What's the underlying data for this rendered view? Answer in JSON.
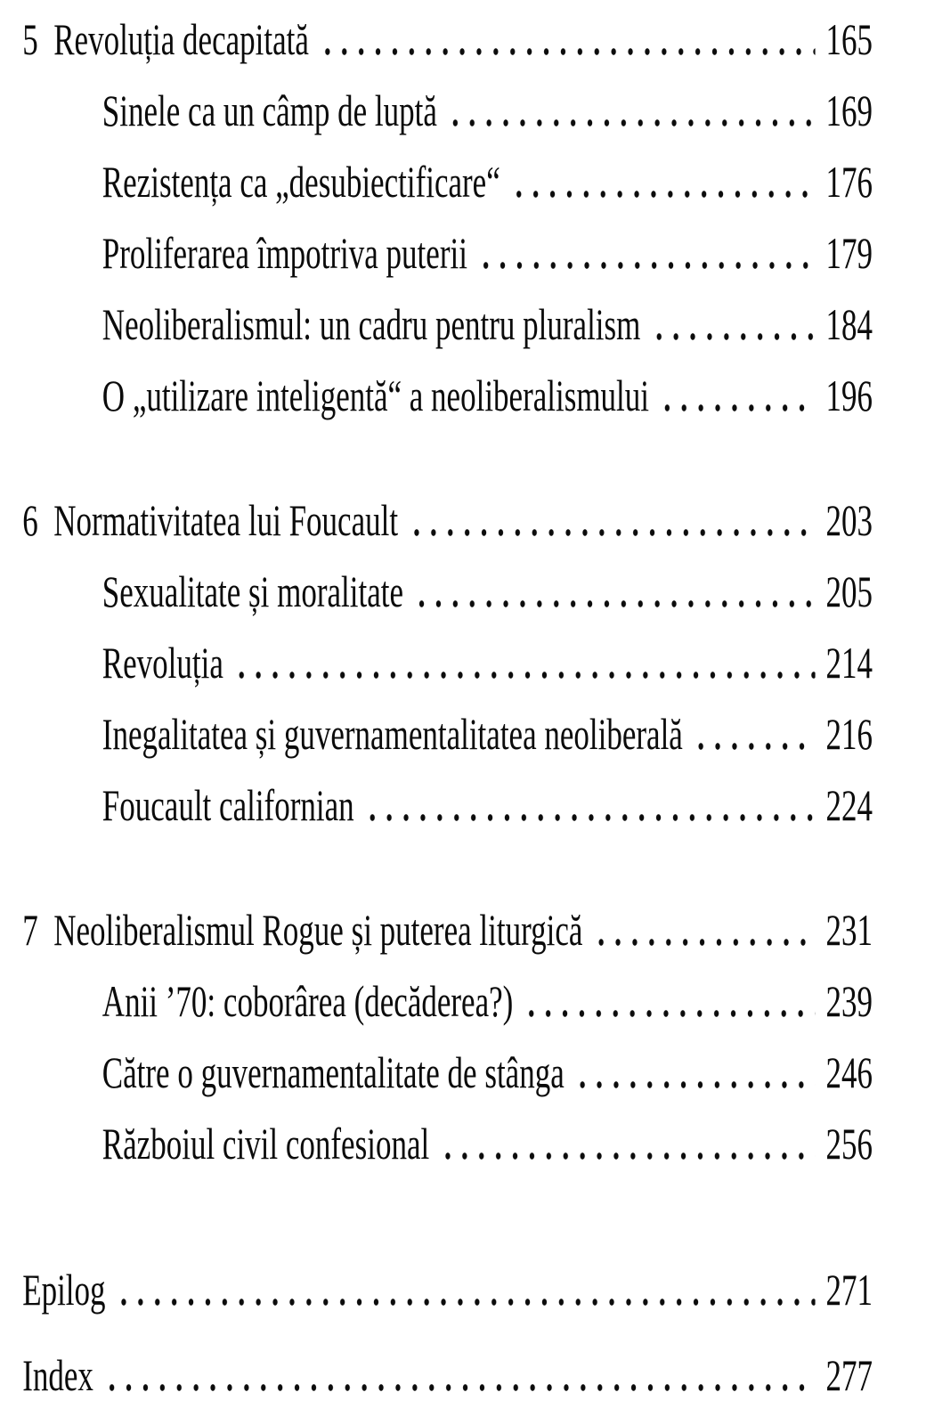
{
  "document": {
    "kind": "book-table-of-contents",
    "language": "Romanian",
    "background_color": "#ffffff",
    "text_color": "#0b0b0b"
  },
  "toc": {
    "sections": [
      {
        "id": "chapter-5",
        "entries": [
          {
            "number": "5",
            "title": "Revoluția decapitată",
            "page": "165"
          },
          {
            "title": "Sinele ca un câmp de luptă",
            "page": "169"
          },
          {
            "title": "Rezistența ca „desubiectificare“",
            "page": "176"
          },
          {
            "title": "Proliferarea împotriva puterii",
            "page": "179"
          },
          {
            "title": "Neoliberalismul: un cadru pentru pluralism",
            "page": "184"
          },
          {
            "title": "O „utilizare inteligentă“ a neoliberalismului",
            "page": "196"
          }
        ]
      },
      {
        "id": "chapter-6",
        "entries": [
          {
            "number": "6",
            "title": "Normativitatea lui Foucault",
            "page": "203"
          },
          {
            "title": "Sexualitate și moralitate",
            "page": "205"
          },
          {
            "title": "Revoluția",
            "page": "214"
          },
          {
            "title": "Inegalitatea și guvernamentalitatea neoliberală",
            "page": "216"
          },
          {
            "title": "Foucault californian",
            "page": "224"
          }
        ]
      },
      {
        "id": "chapter-7",
        "entries": [
          {
            "number": "7",
            "title": "Neoliberalismul Rogue și puterea liturgică",
            "page": "231"
          },
          {
            "title": "Anii ’70: coborârea (decăderea?)",
            "page": "239"
          },
          {
            "title": "Către o guvernamentalitate de stânga",
            "page": "246"
          },
          {
            "title": "Războiul civil confesional",
            "page": "256"
          }
        ]
      },
      {
        "id": "back-matter",
        "back_matter": true,
        "entries": [
          {
            "title": "Epilog",
            "page": "271"
          },
          {
            "title": "Index",
            "page": "277"
          }
        ]
      }
    ]
  }
}
